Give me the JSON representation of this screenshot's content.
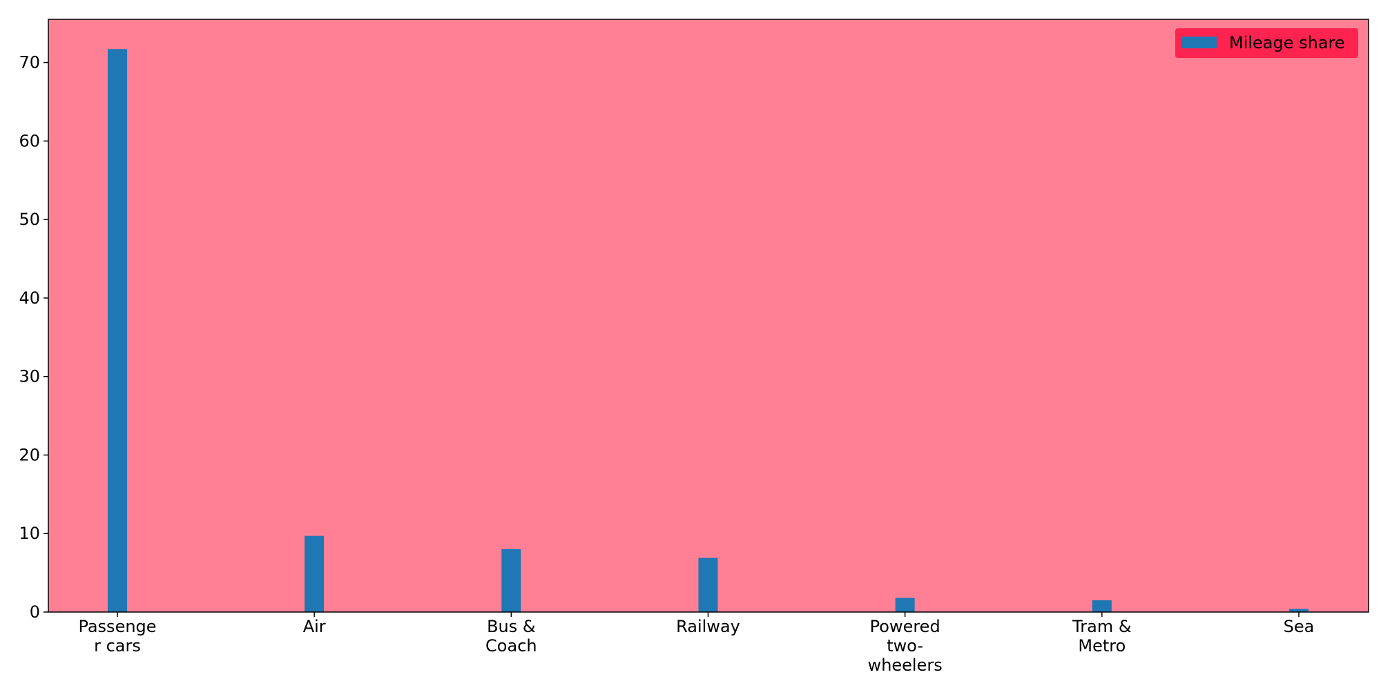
{
  "chart_data": {
    "type": "bar",
    "categories": [
      [
        "Passenge",
        "r cars"
      ],
      [
        "Air"
      ],
      [
        "Bus &",
        "Coach"
      ],
      [
        "Railway"
      ],
      [
        "Powered",
        "two-",
        "wheelers"
      ],
      [
        "Tram &",
        "Metro"
      ],
      [
        "Sea"
      ]
    ],
    "series": [
      {
        "name": "Mileage share",
        "values": [
          71.7,
          9.7,
          8.0,
          6.9,
          1.8,
          1.5,
          0.4
        ]
      }
    ],
    "title": "",
    "xlabel": "",
    "ylabel": "",
    "ylim": [
      0,
      75.5
    ],
    "yticks": [
      0,
      10,
      20,
      30,
      40,
      50,
      60,
      70
    ],
    "grid": false,
    "legend_position": "top-right",
    "colors": {
      "plot_background": "#ff8095",
      "bar": "#1f77b4",
      "legend_background": "#ff2350"
    }
  }
}
